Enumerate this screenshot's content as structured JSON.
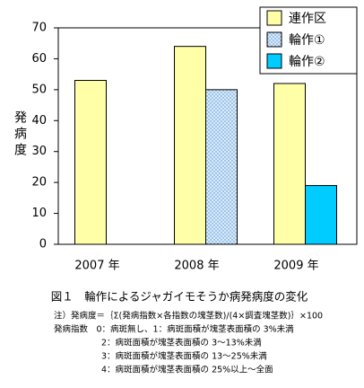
{
  "chart_data": {
    "type": "bar",
    "y_label": "発病度",
    "categories": [
      "2007 年",
      "2008 年",
      "2009 年"
    ],
    "series": [
      {
        "name": "連作区",
        "color": "#ffffa8",
        "values": [
          53,
          64,
          52
        ]
      },
      {
        "name": "輪作①",
        "color": "#d4ecff",
        "pattern": "dots",
        "values": [
          null,
          50,
          null
        ]
      },
      {
        "name": "輪作②",
        "color": "#00ccff",
        "values": [
          null,
          null,
          19
        ]
      }
    ],
    "ylim": [
      0,
      70
    ],
    "yticks": [
      0,
      10,
      20,
      30,
      40,
      50,
      60,
      70
    ],
    "grid": false,
    "legend": "top-right",
    "caption": "図１　輪作によるジャガイモそうか病発病度の変化",
    "notes": [
      "注）発病度＝｛Σ(発病指数×各指数の塊茎数)/(4×調査塊茎数)｝×100",
      "発病指数　0：病斑無し、1：病斑面積が塊茎表面積の 3%未満",
      "2：病斑面積が塊茎表面積の 3～13%未満",
      "3：病斑面積が塊茎表面積の 13～25%未満",
      "4：病斑面積が塊茎表面積の 25%以上～全面"
    ]
  }
}
